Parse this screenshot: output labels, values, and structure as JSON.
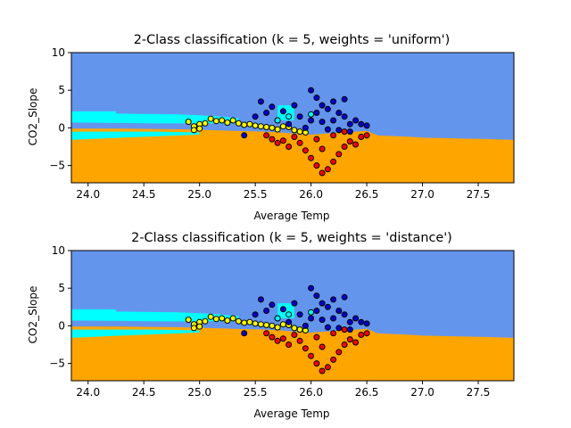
{
  "chart_data": [
    {
      "type": "scatter",
      "title": "2-Class classification (k = 5, weights = 'uniform')",
      "xlabel": "Average Temp",
      "ylabel": "CO2_Slope",
      "xlim": [
        23.85,
        27.82
      ],
      "ylim": [
        -7.3,
        10
      ],
      "xticks": [
        "24.0",
        "24.5",
        "25.0",
        "25.5",
        "26.0",
        "26.5",
        "27.0",
        "27.5"
      ],
      "yticks": [
        "10",
        "5",
        "0",
        "−5"
      ],
      "grid": false,
      "legend": "none",
      "colors": {
        "upper_region": "#6495ED",
        "lower_region": "#FFA500",
        "cyan_region": "#00FFFF",
        "point_edge": "#000000"
      },
      "series": [
        {
          "color": "#FFFF00",
          "points": [
            [
              24.9,
              0.8
            ],
            [
              24.95,
              0.2
            ],
            [
              25.0,
              0.5
            ],
            [
              25.05,
              0.6
            ],
            [
              25.1,
              1.2
            ],
            [
              25.15,
              0.9
            ],
            [
              25.2,
              1.0
            ],
            [
              25.25,
              0.7
            ],
            [
              25.3,
              1.0
            ],
            [
              25.35,
              0.6
            ],
            [
              25.4,
              0.4
            ],
            [
              25.45,
              0.5
            ],
            [
              25.5,
              0.3
            ],
            [
              25.55,
              0.2
            ],
            [
              25.6,
              0.1
            ],
            [
              25.65,
              0.0
            ],
            [
              25.7,
              -0.2
            ],
            [
              25.75,
              0.2
            ],
            [
              25.8,
              0.1
            ],
            [
              25.85,
              -0.3
            ],
            [
              25.9,
              -0.5
            ],
            [
              25.95,
              -0.6
            ],
            [
              25.0,
              -0.1
            ],
            [
              24.95,
              -0.3
            ]
          ]
        },
        {
          "color": "#0000CD",
          "points": [
            [
              25.55,
              3.5
            ],
            [
              25.6,
              2.0
            ],
            [
              25.5,
              1.5
            ],
            [
              25.65,
              2.8
            ],
            [
              25.7,
              1.0
            ],
            [
              25.8,
              0.5
            ],
            [
              25.9,
              1.5
            ],
            [
              26.0,
              5.0
            ],
            [
              26.05,
              4.0
            ],
            [
              26.1,
              3.0
            ],
            [
              26.15,
              2.5
            ],
            [
              26.0,
              1.0
            ],
            [
              26.1,
              0.8
            ],
            [
              26.2,
              1.0
            ],
            [
              26.25,
              2.0
            ],
            [
              26.3,
              1.5
            ],
            [
              26.35,
              0.5
            ],
            [
              26.4,
              1.0
            ],
            [
              26.45,
              0.5
            ],
            [
              26.5,
              0.3
            ],
            [
              26.2,
              3.5
            ],
            [
              26.05,
              2.0
            ],
            [
              25.95,
              0.0
            ],
            [
              26.15,
              -0.2
            ],
            [
              26.25,
              -0.3
            ],
            [
              26.35,
              -0.5
            ],
            [
              25.4,
              -1.0
            ],
            [
              25.85,
              3.0
            ],
            [
              26.3,
              3.8
            ],
            [
              25.75,
              2.2
            ]
          ]
        },
        {
          "color": "#FF0000",
          "points": [
            [
              25.6,
              -1.0
            ],
            [
              25.65,
              -1.5
            ],
            [
              25.7,
              -2.0
            ],
            [
              25.75,
              -1.7
            ],
            [
              25.8,
              -2.5
            ],
            [
              25.9,
              -2.0
            ],
            [
              25.95,
              -3.0
            ],
            [
              26.0,
              -4.0
            ],
            [
              26.05,
              -5.0
            ],
            [
              26.1,
              -6.0
            ],
            [
              26.15,
              -5.5
            ],
            [
              26.2,
              -4.5
            ],
            [
              26.25,
              -3.5
            ],
            [
              26.3,
              -2.5
            ],
            [
              26.35,
              -1.8
            ],
            [
              26.4,
              -2.2
            ],
            [
              26.45,
              -1.2
            ],
            [
              26.5,
              -1.0
            ],
            [
              26.05,
              -1.5
            ],
            [
              26.2,
              -1.0
            ],
            [
              26.3,
              -0.5
            ],
            [
              26.1,
              -2.8
            ],
            [
              25.85,
              -1.2
            ]
          ]
        },
        {
          "color": "#00FFFF",
          "points": [
            [
              25.8,
              1.5
            ],
            [
              26.0,
              1.8
            ],
            [
              25.7,
              1.0
            ]
          ]
        }
      ]
    },
    {
      "type": "scatter",
      "title": "2-Class classification (k = 5, weights = 'distance')",
      "xlabel": "Average Temp",
      "ylabel": "CO2_Slope",
      "xlim": [
        23.85,
        27.82
      ],
      "ylim": [
        -7.3,
        10
      ],
      "xticks": [
        "24.0",
        "24.5",
        "25.0",
        "25.5",
        "26.0",
        "26.5",
        "27.0",
        "27.5"
      ],
      "yticks": [
        "10",
        "5",
        "0",
        "−5"
      ],
      "grid": false,
      "legend": "none",
      "colors": {
        "upper_region": "#6495ED",
        "lower_region": "#FFA500",
        "cyan_region": "#00FFFF",
        "point_edge": "#000000"
      },
      "series": [
        {
          "color": "#FFFF00",
          "points": [
            [
              24.9,
              0.8
            ],
            [
              24.95,
              0.2
            ],
            [
              25.0,
              0.5
            ],
            [
              25.05,
              0.6
            ],
            [
              25.1,
              1.2
            ],
            [
              25.15,
              0.9
            ],
            [
              25.2,
              1.0
            ],
            [
              25.25,
              0.7
            ],
            [
              25.3,
              1.0
            ],
            [
              25.35,
              0.6
            ],
            [
              25.4,
              0.4
            ],
            [
              25.45,
              0.5
            ],
            [
              25.5,
              0.3
            ],
            [
              25.55,
              0.2
            ],
            [
              25.6,
              0.1
            ],
            [
              25.65,
              0.0
            ],
            [
              25.7,
              -0.2
            ],
            [
              25.75,
              0.2
            ],
            [
              25.8,
              0.1
            ],
            [
              25.85,
              -0.3
            ],
            [
              25.9,
              -0.5
            ],
            [
              25.95,
              -0.6
            ],
            [
              25.0,
              -0.1
            ],
            [
              24.95,
              -0.3
            ]
          ]
        },
        {
          "color": "#0000CD",
          "points": [
            [
              25.55,
              3.5
            ],
            [
              25.6,
              2.0
            ],
            [
              25.5,
              1.5
            ],
            [
              25.65,
              2.8
            ],
            [
              25.7,
              1.0
            ],
            [
              25.8,
              0.5
            ],
            [
              25.9,
              1.5
            ],
            [
              26.0,
              5.0
            ],
            [
              26.05,
              4.0
            ],
            [
              26.1,
              3.0
            ],
            [
              26.15,
              2.5
            ],
            [
              26.0,
              1.0
            ],
            [
              26.1,
              0.8
            ],
            [
              26.2,
              1.0
            ],
            [
              26.25,
              2.0
            ],
            [
              26.3,
              1.5
            ],
            [
              26.35,
              0.5
            ],
            [
              26.4,
              1.0
            ],
            [
              26.45,
              0.5
            ],
            [
              26.5,
              0.3
            ],
            [
              26.2,
              3.5
            ],
            [
              26.05,
              2.0
            ],
            [
              25.95,
              0.0
            ],
            [
              26.15,
              -0.2
            ],
            [
              26.25,
              -0.3
            ],
            [
              26.35,
              -0.5
            ],
            [
              25.4,
              -1.0
            ],
            [
              25.85,
              3.0
            ],
            [
              26.3,
              3.8
            ],
            [
              25.75,
              2.2
            ]
          ]
        },
        {
          "color": "#FF0000",
          "points": [
            [
              25.6,
              -1.0
            ],
            [
              25.65,
              -1.5
            ],
            [
              25.7,
              -2.0
            ],
            [
              25.75,
              -1.7
            ],
            [
              25.8,
              -2.5
            ],
            [
              25.9,
              -2.0
            ],
            [
              25.95,
              -3.0
            ],
            [
              26.0,
              -4.0
            ],
            [
              26.05,
              -5.0
            ],
            [
              26.1,
              -6.0
            ],
            [
              26.15,
              -5.5
            ],
            [
              26.2,
              -4.5
            ],
            [
              26.25,
              -3.5
            ],
            [
              26.3,
              -2.5
            ],
            [
              26.35,
              -1.8
            ],
            [
              26.4,
              -2.2
            ],
            [
              26.45,
              -1.2
            ],
            [
              26.5,
              -1.0
            ],
            [
              26.05,
              -1.5
            ],
            [
              26.2,
              -1.0
            ],
            [
              26.3,
              -0.5
            ],
            [
              26.1,
              -2.8
            ],
            [
              25.85,
              -1.2
            ]
          ]
        },
        {
          "color": "#00FFFF",
          "points": [
            [
              25.8,
              1.5
            ],
            [
              26.0,
              1.8
            ],
            [
              25.7,
              1.0
            ]
          ]
        }
      ]
    }
  ]
}
